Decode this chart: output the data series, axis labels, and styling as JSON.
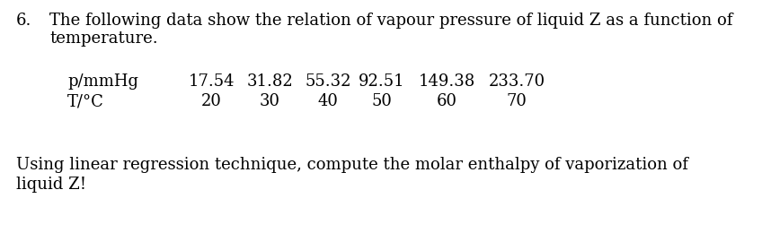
{
  "title_number": "6.",
  "title_text": "The following data show the relation of vapour pressure of liquid Z as a function of",
  "title_text2": "temperature.",
  "row1_label": "p/mmHg",
  "row2_label": "T/°C",
  "row1_values": [
    "17.54",
    "31.82",
    "55.32",
    "92.51",
    "149.38",
    "233.70"
  ],
  "row2_values": [
    "20",
    "30",
    "40",
    "50",
    "60",
    "70"
  ],
  "footer_line1": "Using linear regression technique, compute the molar enthalpy of vaporization of",
  "footer_line2": "liquid Z!",
  "bg_color": "#ffffff",
  "text_color": "#000000",
  "font_size": 13.0,
  "font_family": "DejaVu Serif"
}
